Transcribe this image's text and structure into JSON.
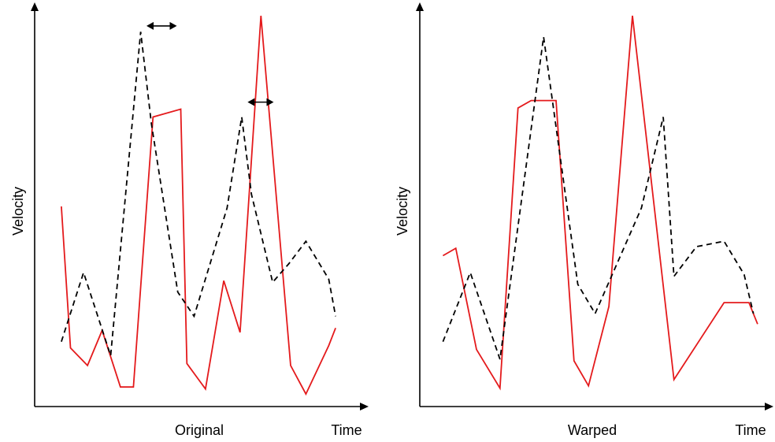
{
  "colors": {
    "solid_series": "#e41a1c",
    "dashed_series": "#000000",
    "axes": "#000000"
  },
  "chart_data": [
    {
      "type": "line",
      "panel_label": "Original",
      "xlabel": "Time",
      "ylabel": "Velocity",
      "xlim": [
        0,
        100
      ],
      "ylim": [
        0,
        100
      ],
      "grid": false,
      "legend": "none",
      "series": [
        {
          "style": "solid",
          "color": "#e41a1c",
          "x": [
            8.2,
            11,
            16.2,
            20.7,
            26.3,
            30.3,
            36.3,
            44.8,
            46.7,
            52.4,
            58,
            63,
            69.4,
            78.5,
            83.2,
            90.2,
            92.3
          ],
          "y": [
            51.2,
            15,
            10.5,
            19.5,
            5,
            5,
            74.1,
            76.1,
            11,
            4.5,
            32.2,
            19,
            100,
            10.5,
            3.2,
            15.6,
            20.1
          ]
        },
        {
          "style": "dashed",
          "color": "#000000",
          "x": [
            8.2,
            15,
            23.3,
            32.5,
            35.8,
            43.9,
            48.9,
            59,
            63.5,
            66.5,
            73,
            78,
            83.2,
            90.2,
            92.3
          ],
          "y": [
            16.6,
            34.3,
            13,
            95.9,
            72.4,
            29.3,
            23.1,
            50.8,
            74.1,
            54.3,
            31.8,
            36.6,
            42.3,
            32.6,
            23.1
          ]
        }
      ],
      "shift_arrows": [
        {
          "from_x": 34.3,
          "to_x": 43.6,
          "y": 97.4
        },
        {
          "from_x": 65.3,
          "to_x": 73.3,
          "y": 77.9
        }
      ]
    },
    {
      "type": "line",
      "panel_label": "Warped",
      "xlabel": "Time",
      "ylabel": "Velocity",
      "xlim": [
        0,
        100
      ],
      "ylim": [
        0,
        100
      ],
      "grid": false,
      "legend": "none",
      "series": [
        {
          "style": "solid",
          "color": "#e41a1c",
          "x": [
            6.7,
            10.4,
            16.4,
            23.2,
            28.4,
            32.2,
            39.4,
            44.6,
            48.8,
            54.7,
            61.5,
            73.5,
            88,
            95.2,
            97.7
          ],
          "y": [
            38.6,
            40.5,
            14.6,
            4.7,
            76.4,
            78.3,
            78.3,
            11.7,
            5.3,
            25.6,
            100,
            6.9,
            26.6,
            26.6,
            21.1
          ]
        },
        {
          "style": "dashed",
          "color": "#000000",
          "x": [
            6.7,
            14.6,
            23.2,
            35.8,
            45.7,
            50.7,
            64.1,
            70.4,
            73.5,
            80,
            88,
            93.8,
            96.5
          ],
          "y": [
            16.6,
            34.3,
            12.1,
            94.6,
            31.3,
            23.8,
            50.8,
            74.1,
            33.3,
            40.9,
            42.3,
            33.8,
            23.8
          ]
        }
      ]
    }
  ]
}
